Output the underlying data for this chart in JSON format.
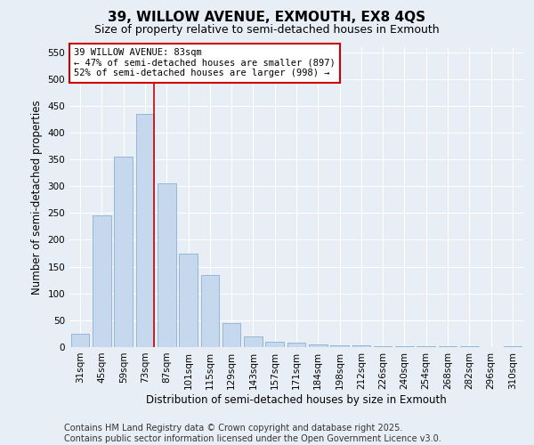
{
  "title": "39, WILLOW AVENUE, EXMOUTH, EX8 4QS",
  "subtitle": "Size of property relative to semi-detached houses in Exmouth",
  "xlabel": "Distribution of semi-detached houses by size in Exmouth",
  "ylabel": "Number of semi-detached properties",
  "bar_labels": [
    "31sqm",
    "45sqm",
    "59sqm",
    "73sqm",
    "87sqm",
    "101sqm",
    "115sqm",
    "129sqm",
    "143sqm",
    "157sqm",
    "171sqm",
    "184sqm",
    "198sqm",
    "212sqm",
    "226sqm",
    "240sqm",
    "254sqm",
    "268sqm",
    "282sqm",
    "296sqm",
    "310sqm"
  ],
  "bar_values": [
    25,
    245,
    355,
    435,
    305,
    175,
    135,
    45,
    20,
    10,
    8,
    5,
    4,
    3,
    2,
    2,
    1,
    1,
    1,
    0,
    1
  ],
  "bar_color": "#c5d8ee",
  "bar_edge_color": "#8ab0d0",
  "vline_x_bar_index": 3,
  "annotation_title": "39 WILLOW AVENUE: 83sqm",
  "annotation_line1": "← 47% of semi-detached houses are smaller (897)",
  "annotation_line2": "52% of semi-detached houses are larger (998) →",
  "vline_color": "#cc0000",
  "annotation_box_facecolor": "#ffffff",
  "annotation_box_edgecolor": "#cc0000",
  "ylim": [
    0,
    560
  ],
  "yticks": [
    0,
    50,
    100,
    150,
    200,
    250,
    300,
    350,
    400,
    450,
    500,
    550
  ],
  "footer_line1": "Contains HM Land Registry data © Crown copyright and database right 2025.",
  "footer_line2": "Contains public sector information licensed under the Open Government Licence v3.0.",
  "bg_color": "#e8eef5",
  "grid_color": "#ffffff",
  "title_fontsize": 11,
  "subtitle_fontsize": 9,
  "axis_label_fontsize": 8.5,
  "tick_fontsize": 7.5,
  "annot_fontsize": 7.5,
  "footer_fontsize": 7
}
